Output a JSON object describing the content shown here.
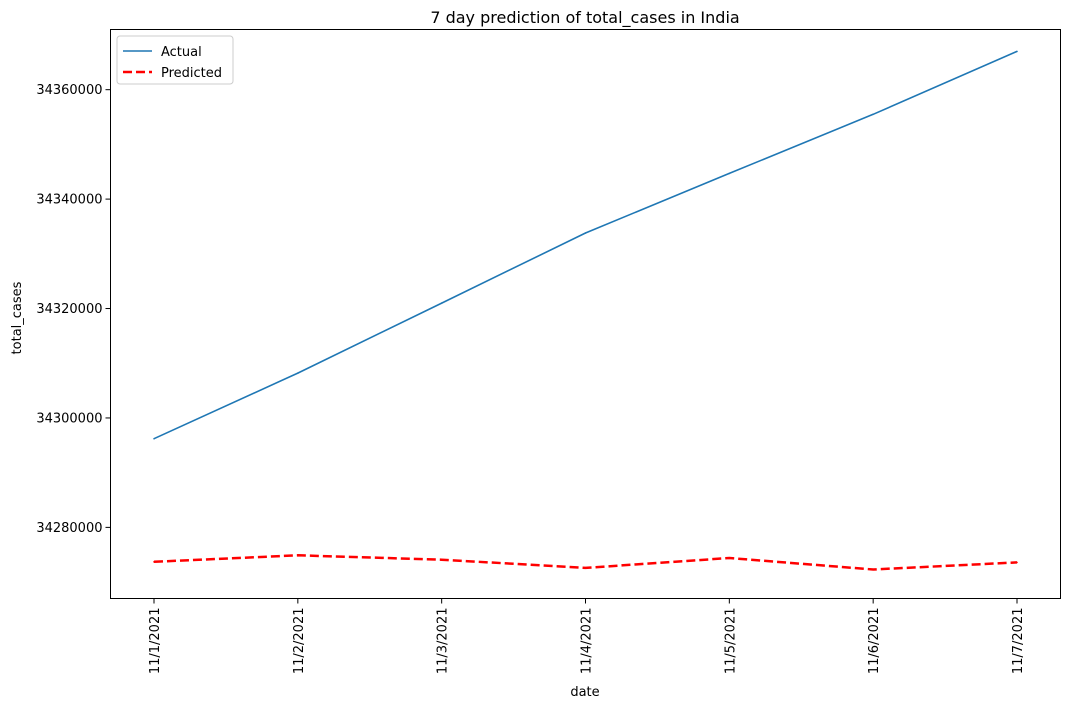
{
  "chart_data": {
    "type": "line",
    "title": "7 day prediction of total_cases in India",
    "xlabel": "date",
    "ylabel": "total_cases",
    "categories": [
      "11/1/2021",
      "11/2/2021",
      "11/3/2021",
      "11/4/2021",
      "11/5/2021",
      "11/6/2021",
      "11/7/2021"
    ],
    "yticks": [
      34280000,
      34300000,
      34320000,
      34340000,
      34360000
    ],
    "ylim": [
      34267000,
      34371000
    ],
    "grid": false,
    "legend_position": "top-left",
    "series": [
      {
        "name": "Actual",
        "color": "#1f77b4",
        "style": "solid",
        "values": [
          34296200,
          34308200,
          34321000,
          34333800,
          34344700,
          34355500,
          34367000
        ]
      },
      {
        "name": "Predicted",
        "color": "#ff0000",
        "style": "dashed",
        "values": [
          34273700,
          34274900,
          34274100,
          34272600,
          34274400,
          34272300,
          34273600
        ]
      }
    ]
  }
}
